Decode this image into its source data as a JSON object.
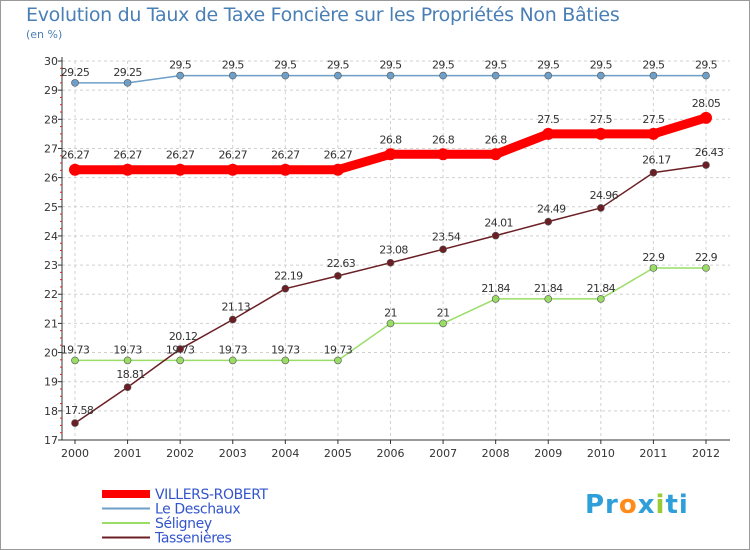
{
  "chart_data": {
    "type": "line",
    "title": "Evolution du Taux de Taxe Foncière sur les Propriétés Non Bâties",
    "ylabel": "(en %)",
    "xlabel": "",
    "ylim": [
      17,
      30
    ],
    "yticks": [
      17,
      18,
      19,
      20,
      21,
      22,
      23,
      24,
      25,
      26,
      27,
      28,
      29,
      30
    ],
    "x": [
      "2000",
      "2001",
      "2002",
      "2003",
      "2004",
      "2005",
      "2006",
      "2007",
      "2008",
      "2009",
      "2010",
      "2011",
      "2012"
    ],
    "grid": true,
    "series": [
      {
        "name": "VILLERS-ROBERT",
        "color": "#ff0000",
        "values": [
          26.27,
          26.27,
          26.27,
          26.27,
          26.27,
          26.27,
          26.8,
          26.8,
          26.8,
          27.5,
          27.5,
          27.5,
          28.05
        ],
        "labels": [
          "26.27",
          "26.27",
          "26.27",
          "26.27",
          "26.27",
          "26.27",
          "26.8",
          "26.8",
          "26.8",
          "27.5",
          "27.5",
          "27.5",
          "28.05"
        ]
      },
      {
        "name": "Le Deschaux",
        "color": "#6e9fc8",
        "values": [
          29.25,
          29.25,
          29.5,
          29.5,
          29.5,
          29.5,
          29.5,
          29.5,
          29.5,
          29.5,
          29.5,
          29.5,
          29.5
        ],
        "labels": [
          "29.25",
          "29.25",
          "29.5",
          "29.5",
          "29.5",
          "29.5",
          "29.5",
          "29.5",
          "29.5",
          "29.5",
          "29.5",
          "29.5",
          "29.5"
        ]
      },
      {
        "name": "Séligney",
        "color": "#99dd66",
        "values": [
          19.73,
          19.73,
          19.73,
          19.73,
          19.73,
          19.73,
          21,
          21,
          21.84,
          21.84,
          21.84,
          22.9,
          22.9
        ],
        "labels": [
          "19.73",
          "19.73",
          "19.73",
          "19.73",
          "19.73",
          "19.73",
          "21",
          "21",
          "21.84",
          "21.84",
          "21.84",
          "22.9",
          "22.9"
        ]
      },
      {
        "name": "Tassenières",
        "color": "#6b1f24",
        "values": [
          17.58,
          18.81,
          20.12,
          21.13,
          22.19,
          22.63,
          23.08,
          23.54,
          24.01,
          24.49,
          24.96,
          26.17,
          26.43
        ],
        "labels": [
          "17.58",
          "18.81",
          "20.12",
          "21.13",
          "22.19",
          "22.63",
          "23.08",
          "23.54",
          "24.01",
          "24.49",
          "24.96",
          "26.17",
          "26.43"
        ]
      }
    ]
  },
  "logo": {
    "parts": [
      "Pr",
      "o",
      "x",
      "i",
      "ti"
    ],
    "colors": [
      "#2e9fd8",
      "#ff8c1a",
      "#2e9fd8",
      "#99cc33",
      "#2e9fd8"
    ]
  }
}
